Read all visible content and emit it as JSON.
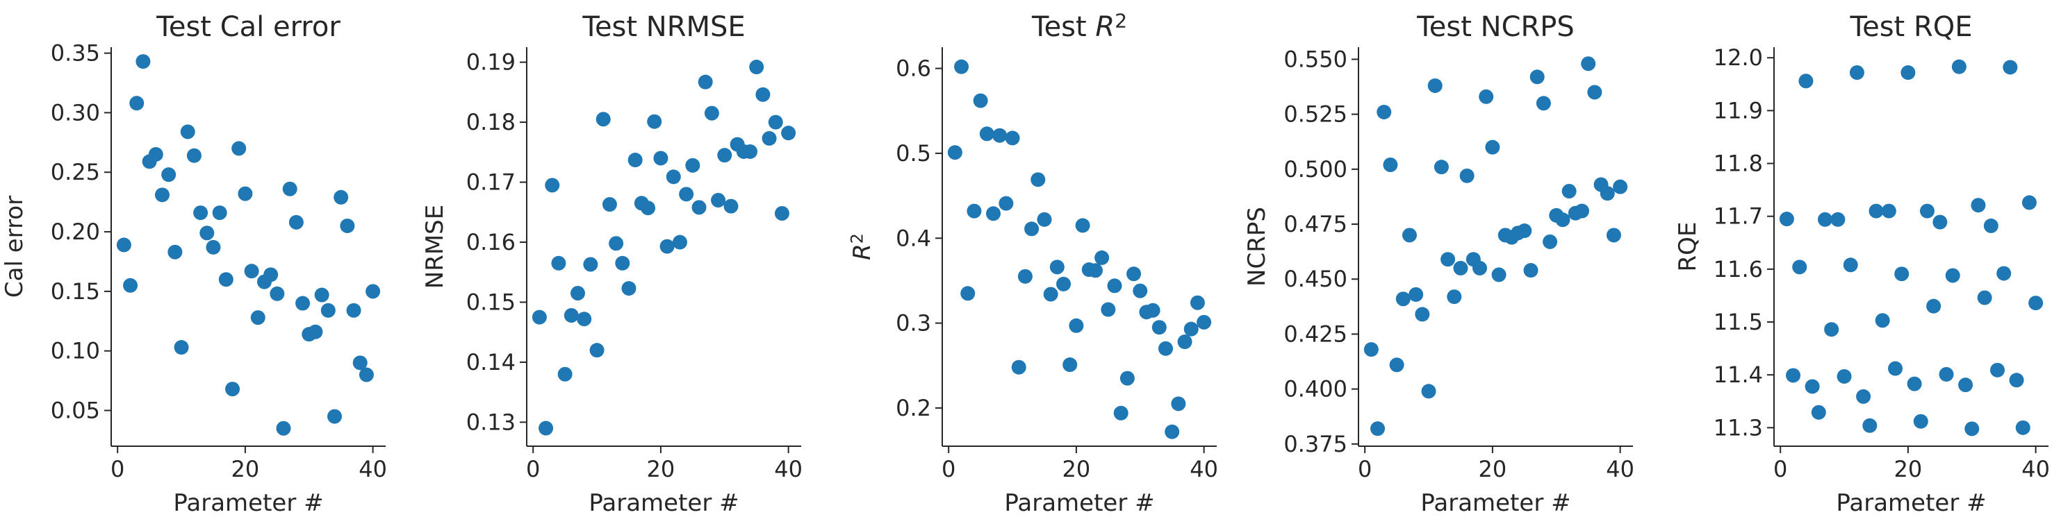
{
  "figure": {
    "point_color": "#1f77b4",
    "axis_color": "#262626",
    "background": "#ffffff"
  },
  "chart_data": [
    {
      "type": "scatter",
      "title": "Test Cal error",
      "xlabel": "Parameter #",
      "ylabel": "Cal error",
      "xlim": [
        -1,
        42
      ],
      "ylim": [
        0.02,
        0.355
      ],
      "xticks": [
        0,
        20,
        40
      ],
      "xtick_labels": [
        "0",
        "20",
        "40"
      ],
      "yticks": [
        0.05,
        0.1,
        0.15,
        0.2,
        0.25,
        0.3,
        0.35
      ],
      "ytick_labels": [
        "0.05",
        "0.10",
        "0.15",
        "0.20",
        "0.25",
        "0.30",
        "0.35"
      ],
      "grid": false,
      "series": [
        {
          "x": [
            1,
            2,
            3,
            4,
            5,
            6,
            7,
            8,
            9,
            10,
            11,
            12,
            13,
            14,
            15,
            16,
            17,
            18,
            19,
            20,
            21,
            22,
            23,
            24,
            25,
            26,
            27,
            28,
            29,
            30,
            31,
            32,
            33,
            34,
            35,
            36,
            37,
            38,
            39,
            40
          ],
          "y": [
            0.189,
            0.155,
            0.308,
            0.343,
            0.259,
            0.265,
            0.231,
            0.248,
            0.183,
            0.103,
            0.284,
            0.264,
            0.216,
            0.199,
            0.187,
            0.216,
            0.16,
            0.068,
            0.27,
            0.232,
            0.167,
            0.128,
            0.158,
            0.164,
            0.148,
            0.035,
            0.236,
            0.208,
            0.14,
            0.114,
            0.116,
            0.147,
            0.134,
            0.045,
            0.229,
            0.205,
            0.134,
            0.09,
            0.08,
            0.15
          ]
        }
      ]
    },
    {
      "type": "scatter",
      "title": "Test NRMSE",
      "xlabel": "Parameter #",
      "ylabel": "NRMSE",
      "xlim": [
        -1,
        42
      ],
      "ylim": [
        0.126,
        0.1925
      ],
      "xticks": [
        0,
        20,
        40
      ],
      "xtick_labels": [
        "0",
        "20",
        "40"
      ],
      "yticks": [
        0.13,
        0.14,
        0.15,
        0.16,
        0.17,
        0.18,
        0.19
      ],
      "ytick_labels": [
        "0.13",
        "0.14",
        "0.15",
        "0.16",
        "0.17",
        "0.18",
        "0.19"
      ],
      "grid": false,
      "series": [
        {
          "x": [
            1,
            2,
            3,
            4,
            5,
            6,
            7,
            8,
            9,
            10,
            11,
            12,
            13,
            14,
            15,
            16,
            17,
            18,
            19,
            20,
            21,
            22,
            23,
            24,
            25,
            26,
            27,
            28,
            29,
            30,
            31,
            32,
            33,
            34,
            35,
            36,
            37,
            38,
            39,
            40
          ],
          "y": [
            0.1475,
            0.129,
            0.1695,
            0.1565,
            0.138,
            0.1478,
            0.1515,
            0.1472,
            0.1563,
            0.142,
            0.1805,
            0.1663,
            0.1598,
            0.1565,
            0.1523,
            0.1737,
            0.1665,
            0.1657,
            0.1801,
            0.174,
            0.1593,
            0.1709,
            0.16,
            0.168,
            0.1728,
            0.1658,
            0.1867,
            0.1815,
            0.167,
            0.1745,
            0.166,
            0.1763,
            0.1751,
            0.1751,
            0.1892,
            0.1846,
            0.1773,
            0.18,
            0.1648,
            0.1782
          ]
        }
      ]
    },
    {
      "type": "scatter",
      "title": "Test R^2",
      "xlabel": "Parameter #",
      "ylabel": "R^2",
      "xlim": [
        -1,
        42
      ],
      "ylim": [
        0.155,
        0.625
      ],
      "xticks": [
        0,
        20,
        40
      ],
      "xtick_labels": [
        "0",
        "20",
        "40"
      ],
      "yticks": [
        0.2,
        0.3,
        0.4,
        0.5,
        0.6
      ],
      "ytick_labels": [
        "0.2",
        "0.3",
        "0.4",
        "0.5",
        "0.6"
      ],
      "grid": false,
      "series": [
        {
          "x": [
            1,
            2,
            3,
            4,
            5,
            6,
            7,
            8,
            9,
            10,
            11,
            12,
            13,
            14,
            15,
            16,
            17,
            18,
            19,
            20,
            21,
            22,
            23,
            24,
            25,
            26,
            27,
            28,
            29,
            30,
            31,
            32,
            33,
            34,
            35,
            36,
            37,
            38,
            39,
            40
          ],
          "y": [
            0.501,
            0.602,
            0.335,
            0.432,
            0.562,
            0.523,
            0.429,
            0.521,
            0.441,
            0.518,
            0.248,
            0.355,
            0.411,
            0.469,
            0.422,
            0.334,
            0.366,
            0.346,
            0.251,
            0.297,
            0.415,
            0.363,
            0.362,
            0.377,
            0.316,
            0.344,
            0.194,
            0.235,
            0.358,
            0.338,
            0.313,
            0.315,
            0.295,
            0.27,
            0.172,
            0.205,
            0.278,
            0.293,
            0.324,
            0.301
          ]
        }
      ]
    },
    {
      "type": "scatter",
      "title": "Test NCRPS",
      "xlabel": "Parameter #",
      "ylabel": "NCRPS",
      "xlim": [
        -1,
        42
      ],
      "ylim": [
        0.374,
        0.5555
      ],
      "xticks": [
        0,
        20,
        40
      ],
      "xtick_labels": [
        "0",
        "20",
        "40"
      ],
      "yticks": [
        0.375,
        0.4,
        0.425,
        0.45,
        0.475,
        0.5,
        0.525,
        0.55
      ],
      "ytick_labels": [
        "0.375",
        "0.400",
        "0.425",
        "0.450",
        "0.475",
        "0.500",
        "0.525",
        "0.550"
      ],
      "grid": false,
      "series": [
        {
          "x": [
            1,
            2,
            3,
            4,
            5,
            6,
            7,
            8,
            9,
            10,
            11,
            12,
            13,
            14,
            15,
            16,
            17,
            18,
            19,
            20,
            21,
            22,
            23,
            24,
            25,
            26,
            27,
            28,
            29,
            30,
            31,
            32,
            33,
            34,
            35,
            36,
            37,
            38,
            39,
            40
          ],
          "y": [
            0.418,
            0.382,
            0.526,
            0.502,
            0.411,
            0.441,
            0.47,
            0.443,
            0.434,
            0.399,
            0.538,
            0.501,
            0.459,
            0.442,
            0.455,
            0.497,
            0.459,
            0.455,
            0.533,
            0.51,
            0.452,
            0.47,
            0.469,
            0.471,
            0.472,
            0.454,
            0.542,
            0.53,
            0.467,
            0.479,
            0.477,
            0.49,
            0.48,
            0.481,
            0.548,
            0.535,
            0.493,
            0.489,
            0.47,
            0.492
          ]
        }
      ]
    },
    {
      "type": "scatter",
      "title": "Test RQE",
      "xlabel": "Parameter #",
      "ylabel": "RQE",
      "xlim": [
        -1,
        42
      ],
      "ylim": [
        11.265,
        12.02
      ],
      "xticks": [
        0,
        20,
        40
      ],
      "xtick_labels": [
        "0",
        "20",
        "40"
      ],
      "yticks": [
        11.3,
        11.4,
        11.5,
        11.6,
        11.7,
        11.8,
        11.9,
        12.0
      ],
      "ytick_labels": [
        "11.3",
        "11.4",
        "11.5",
        "11.6",
        "11.7",
        "11.8",
        "11.9",
        "12.0"
      ],
      "grid": false,
      "series": [
        {
          "x": [
            1,
            2,
            3,
            4,
            5,
            6,
            7,
            8,
            9,
            10,
            11,
            12,
            13,
            14,
            15,
            16,
            17,
            18,
            19,
            20,
            21,
            22,
            23,
            24,
            25,
            26,
            27,
            28,
            29,
            30,
            31,
            32,
            33,
            34,
            35,
            36,
            37,
            38,
            39,
            40
          ],
          "y": [
            11.695,
            11.399,
            11.604,
            11.956,
            11.378,
            11.329,
            11.694,
            11.486,
            11.694,
            11.397,
            11.608,
            11.972,
            11.359,
            11.304,
            11.71,
            11.503,
            11.71,
            11.412,
            11.591,
            11.972,
            11.383,
            11.312,
            11.71,
            11.53,
            11.689,
            11.401,
            11.588,
            11.983,
            11.381,
            11.298,
            11.721,
            11.546,
            11.682,
            11.409,
            11.592,
            11.982,
            11.39,
            11.3,
            11.726,
            11.536
          ]
        }
      ]
    }
  ]
}
